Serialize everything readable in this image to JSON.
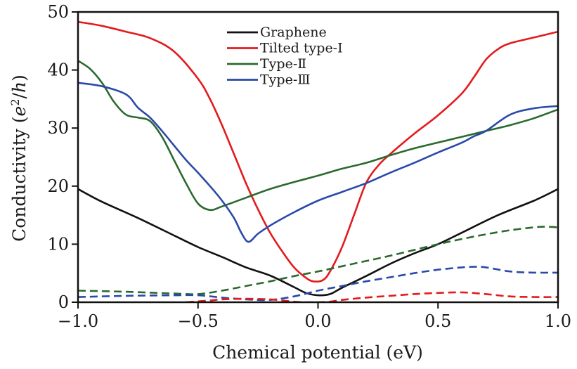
{
  "chart_data": {
    "type": "line",
    "title": "",
    "xlabel": "Chemical potential (eV)",
    "ylabel": "Conductivity (e²/h)",
    "ylabel_parts": {
      "prefix": "Conductivity (",
      "var": "e",
      "sup": "2",
      "mid": "/",
      "var2": "h",
      "suffix": ")"
    },
    "xlim": [
      -1.0,
      1.0
    ],
    "ylim": [
      0,
      50
    ],
    "x_ticks": [
      -1.0,
      -0.5,
      0.0,
      0.5,
      1.0
    ],
    "x_tick_labels": [
      "−1.0",
      "−0.5",
      "0.0",
      "0.5",
      "1.0"
    ],
    "y_ticks": [
      0,
      10,
      20,
      30,
      40,
      50
    ],
    "y_tick_labels": [
      "0",
      "10",
      "20",
      "30",
      "40",
      "50"
    ],
    "grid": false,
    "legend_position": "top-center",
    "legend": [
      {
        "label": "Graphene",
        "color": "#111111"
      },
      {
        "label": "Tilted type-I",
        "color": "#e41a1c"
      },
      {
        "label": "Type-Ⅱ",
        "color": "#2a6a2e"
      },
      {
        "label": "Type-Ⅲ",
        "color": "#2b4aa8"
      }
    ],
    "series": [
      {
        "name": "Graphene",
        "style": "solid",
        "color": "#111111",
        "x": [
          -1.0,
          -0.9,
          -0.75,
          -0.6,
          -0.5,
          -0.4,
          -0.3,
          -0.2,
          -0.1,
          -0.05,
          0.0,
          0.05,
          0.1,
          0.2,
          0.3,
          0.4,
          0.5,
          0.6,
          0.75,
          0.9,
          1.0
        ],
        "y": [
          19.5,
          17.3,
          14.5,
          11.5,
          9.5,
          7.8,
          6.0,
          4.6,
          2.6,
          1.6,
          1.2,
          1.4,
          2.5,
          4.5,
          6.6,
          8.4,
          10.0,
          12.0,
          15.0,
          17.5,
          19.5
        ]
      },
      {
        "name": "Tilted type-I",
        "style": "solid",
        "color": "#e41a1c",
        "x": [
          -1.0,
          -0.9,
          -0.8,
          -0.7,
          -0.6,
          -0.5,
          -0.45,
          -0.4,
          -0.35,
          -0.3,
          -0.25,
          -0.2,
          -0.15,
          -0.1,
          -0.05,
          -0.02,
          0.02,
          0.05,
          0.1,
          0.15,
          0.2,
          0.25,
          0.3,
          0.4,
          0.5,
          0.6,
          0.65,
          0.7,
          0.75,
          0.8,
          0.9,
          1.0
        ],
        "y": [
          48.3,
          47.6,
          46.6,
          45.5,
          43.2,
          38.5,
          35.0,
          30.5,
          25.5,
          20.5,
          16.0,
          12.0,
          8.8,
          6.0,
          4.2,
          3.6,
          3.8,
          5.3,
          9.5,
          15.0,
          20.5,
          23.5,
          25.5,
          29.0,
          32.2,
          36.0,
          38.8,
          41.8,
          43.6,
          44.6,
          45.6,
          46.6
        ]
      },
      {
        "name": "Type-Ⅱ",
        "style": "solid",
        "color": "#2a6a2e",
        "x": [
          -1.0,
          -0.95,
          -0.9,
          -0.85,
          -0.8,
          -0.75,
          -0.7,
          -0.65,
          -0.6,
          -0.55,
          -0.5,
          -0.45,
          -0.4,
          -0.3,
          -0.2,
          -0.1,
          0.0,
          0.1,
          0.2,
          0.3,
          0.4,
          0.5,
          0.6,
          0.7,
          0.8,
          0.9,
          1.0
        ],
        "y": [
          41.6,
          40.2,
          37.8,
          34.5,
          32.3,
          31.8,
          31.2,
          28.5,
          24.5,
          20.5,
          17.0,
          15.9,
          16.5,
          18.0,
          19.5,
          20.7,
          21.8,
          23.0,
          24.0,
          25.3,
          26.5,
          27.5,
          28.5,
          29.5,
          30.5,
          31.7,
          33.2
        ]
      },
      {
        "name": "Type-Ⅲ",
        "style": "solid",
        "color": "#2b4aa8",
        "x": [
          -1.0,
          -0.9,
          -0.8,
          -0.75,
          -0.7,
          -0.65,
          -0.6,
          -0.55,
          -0.5,
          -0.45,
          -0.4,
          -0.35,
          -0.32,
          -0.29,
          -0.25,
          -0.2,
          -0.1,
          0.0,
          0.1,
          0.2,
          0.3,
          0.4,
          0.5,
          0.6,
          0.65,
          0.7,
          0.8,
          0.9,
          1.0
        ],
        "y": [
          37.8,
          37.2,
          35.8,
          33.5,
          31.8,
          29.5,
          27.0,
          24.5,
          22.3,
          20.0,
          17.5,
          14.5,
          12.0,
          10.4,
          11.8,
          13.2,
          15.5,
          17.5,
          19.0,
          20.5,
          22.3,
          24.0,
          25.8,
          27.5,
          28.6,
          29.5,
          32.3,
          33.4,
          33.8
        ]
      },
      {
        "name": "Type-Ⅱ (dashed)",
        "style": "dashed",
        "color": "#2a6a2e",
        "x": [
          -1.0,
          -0.8,
          -0.6,
          -0.5,
          -0.4,
          -0.3,
          -0.2,
          -0.1,
          0.0,
          0.1,
          0.2,
          0.3,
          0.4,
          0.5,
          0.6,
          0.7,
          0.8,
          0.9,
          0.95,
          1.0
        ],
        "y": [
          2.0,
          1.8,
          1.5,
          1.4,
          2.0,
          2.8,
          3.6,
          4.5,
          5.3,
          6.2,
          7.1,
          8.0,
          9.0,
          10.0,
          10.9,
          11.7,
          12.4,
          12.9,
          13.0,
          12.9
        ]
      },
      {
        "name": "Type-Ⅲ (dashed)",
        "style": "dashed",
        "color": "#2b4aa8",
        "x": [
          -1.0,
          -0.8,
          -0.6,
          -0.5,
          -0.4,
          -0.3,
          -0.2,
          -0.1,
          0.0,
          0.1,
          0.2,
          0.3,
          0.4,
          0.5,
          0.6,
          0.65,
          0.7,
          0.8,
          0.9,
          1.0
        ],
        "y": [
          0.9,
          1.1,
          1.2,
          1.2,
          0.8,
          0.5,
          0.4,
          1.0,
          2.0,
          2.8,
          3.6,
          4.3,
          5.0,
          5.6,
          6.0,
          6.1,
          6.0,
          5.3,
          5.1,
          5.1
        ]
      },
      {
        "name": "Tilted type-I (dashed)",
        "style": "dashed",
        "color": "#e41a1c",
        "x": [
          -0.55,
          -0.45,
          -0.4,
          -0.3,
          -0.2,
          -0.15,
          -0.1,
          -0.05,
          0.0,
          0.05,
          0.1,
          0.2,
          0.3,
          0.4,
          0.5,
          0.6,
          0.7,
          0.8,
          0.9,
          1.0
        ],
        "y": [
          0.0,
          0.3,
          0.5,
          0.6,
          0.5,
          0.3,
          0.1,
          0.0,
          0.0,
          0.1,
          0.4,
          0.8,
          1.1,
          1.4,
          1.6,
          1.7,
          1.4,
          1.0,
          0.9,
          0.9
        ]
      }
    ]
  }
}
